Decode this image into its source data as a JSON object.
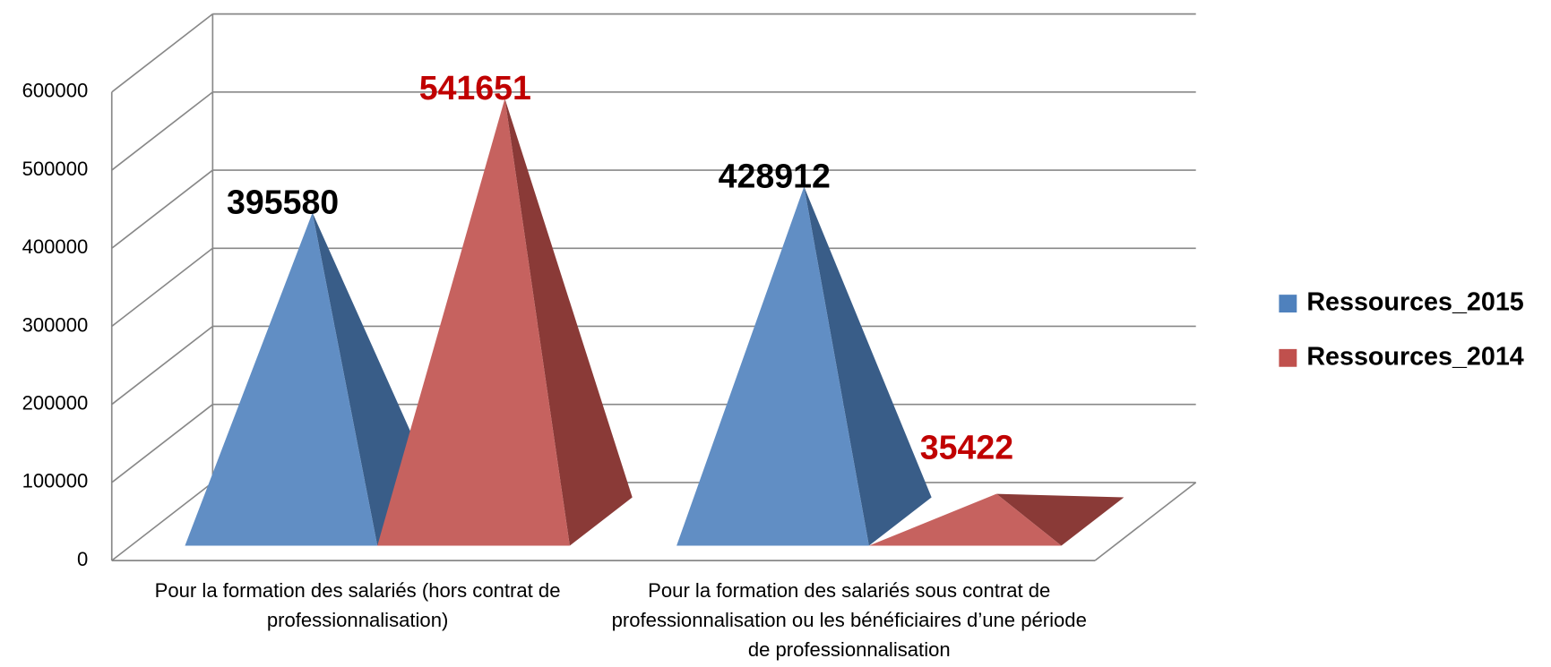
{
  "chart_data": {
    "type": "pyramid3d",
    "categories": [
      "Pour la formation des salariés (hors contrat de professionnalisation)",
      "Pour la formation des salariés sous contrat de professionnalisation ou les bénéficiaires d’une période de professionnalisation"
    ],
    "series": [
      {
        "name": "Ressources_2015",
        "color": "#4f81bd",
        "label_color": "#000000",
        "values": [
          395580,
          428912
        ]
      },
      {
        "name": "Ressources_2014",
        "color": "#c0504d",
        "label_color": "#c00000",
        "values": [
          541651,
          35422
        ]
      }
    ],
    "ylim": [
      0,
      600000
    ],
    "yticks": [
      0,
      100000,
      200000,
      300000,
      400000,
      500000,
      600000
    ],
    "grid": true,
    "legend": "right"
  }
}
